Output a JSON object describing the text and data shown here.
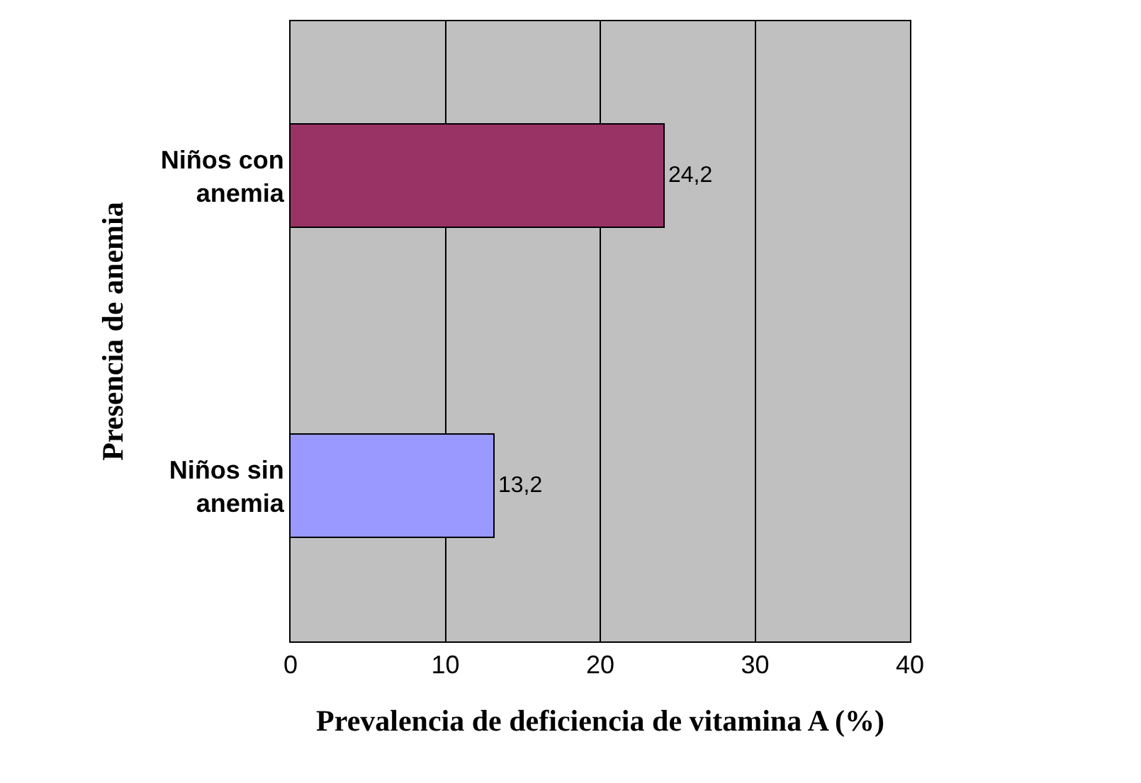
{
  "chart_data": {
    "type": "bar",
    "orientation": "horizontal",
    "categories": [
      "Niños con anemia",
      "Niños sin anemia"
    ],
    "values": [
      24.2,
      13.2
    ],
    "colors": [
      "#993366",
      "#9999ff"
    ],
    "value_labels": [
      "24,2",
      "13,2"
    ],
    "xlabel": "Prevalencia de deficiencia de vitamina A (%)",
    "ylabel": "Presencia de anemia",
    "xlim": [
      0,
      40
    ],
    "xticks": [
      0,
      10,
      20,
      30,
      40
    ],
    "grid": "x",
    "legend": false
  }
}
